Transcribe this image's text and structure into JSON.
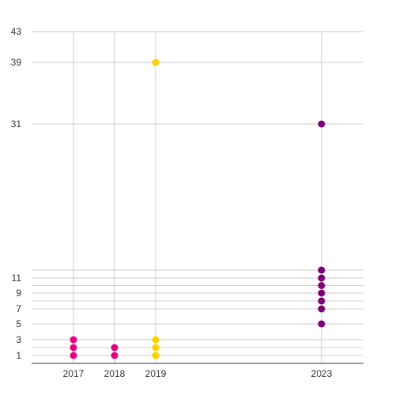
{
  "chart_data": {
    "type": "scatter",
    "title": "",
    "xlabel": "",
    "ylabel": "",
    "x_ticks": [
      "2017",
      "2018",
      "2019",
      "2023"
    ],
    "y_ticks": [
      1,
      3,
      5,
      7,
      9,
      11,
      31,
      39,
      43
    ],
    "xlim": [
      2016,
      2024
    ],
    "ylim": [
      0,
      43
    ],
    "grid": true,
    "legend": "none",
    "series": [
      {
        "color": "#e6007e",
        "points": [
          [
            2017,
            1
          ],
          [
            2017,
            2
          ],
          [
            2017,
            3
          ],
          [
            2018,
            1
          ],
          [
            2018,
            2
          ]
        ]
      },
      {
        "color": "#ffd100",
        "points": [
          [
            2019,
            1
          ],
          [
            2019,
            2
          ],
          [
            2019,
            3
          ],
          [
            2019,
            39
          ]
        ]
      },
      {
        "color": "#7b0073",
        "points": [
          [
            2023,
            5
          ],
          [
            2023,
            7
          ],
          [
            2023,
            8
          ],
          [
            2023,
            9
          ],
          [
            2023,
            10
          ],
          [
            2023,
            11
          ],
          [
            2023,
            12
          ],
          [
            2023,
            31
          ]
        ]
      }
    ]
  }
}
